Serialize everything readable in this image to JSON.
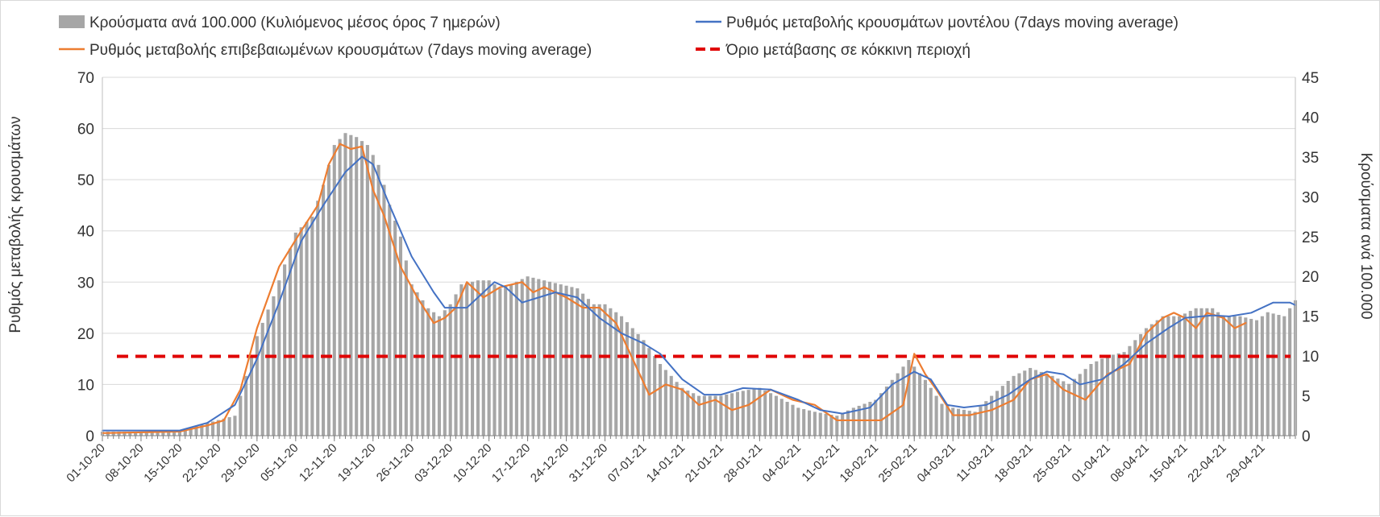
{
  "chart_data": {
    "type": "bar+line",
    "legend": [
      {
        "key": "bars",
        "label": "Κρούσματα ανά 100.000 (Κυλιόμενος μέσος όρος 7 ημερών)",
        "color": "#a6a6a6"
      },
      {
        "key": "model",
        "label": "Ρυθμός μεταβολής κρουσμάτων μοντέλου (7days moving average)",
        "color": "#4472c4"
      },
      {
        "key": "confirmed",
        "label": "Ρυθμός μεταβολής επιβεβαιωμένων κρουσμάτων (7days moving average)",
        "color": "#ed7d31"
      },
      {
        "key": "threshold",
        "label": "Όριο μετάβασης σε κόκκινη περιοχή",
        "color": "#e00000"
      }
    ],
    "legend_placement": "top",
    "ylabel_left": "Ρυθμός μεταβολής κρουσμάτων",
    "ylabel_right": "Κρούσματα ανά 100.000",
    "ylim_left": [
      0,
      70
    ],
    "yticks_left": [
      0,
      10,
      20,
      30,
      40,
      50,
      60,
      70
    ],
    "ylim_right": [
      0,
      45
    ],
    "yticks_right": [
      0,
      5,
      10,
      15,
      20,
      25,
      30,
      35,
      40,
      45
    ],
    "grid": true,
    "x_start": "01-10-20",
    "x_end": "05-05-21",
    "x_ticks": [
      "01-10-20",
      "08-10-20",
      "15-10-20",
      "22-10-20",
      "29-10-20",
      "05-11-20",
      "12-11-20",
      "19-11-20",
      "26-11-20",
      "03-12-20",
      "10-12-20",
      "17-12-20",
      "24-12-20",
      "31-12-20",
      "07-01-21",
      "14-01-21",
      "21-01-21",
      "28-01-21",
      "04-02-21",
      "11-02-21",
      "18-02-21",
      "25-02-21",
      "04-03-21",
      "11-03-21",
      "18-03-21",
      "25-03-21",
      "01-04-21",
      "08-04-21",
      "15-04-21",
      "22-04-21",
      "29-04-21"
    ],
    "threshold_left_value": 15.5,
    "bars_cases_per_100k": {
      "x": [
        "01-10-20",
        "08-10-20",
        "15-10-20",
        "20-10-20",
        "25-10-20",
        "29-10-20",
        "01-11-20",
        "03-11-20",
        "05-11-20",
        "08-11-20",
        "10-11-20",
        "12-11-20",
        "14-11-20",
        "16-11-20",
        "18-11-20",
        "20-11-20",
        "22-11-20",
        "24-11-20",
        "26-11-20",
        "29-11-20",
        "01-12-20",
        "03-12-20",
        "05-12-20",
        "08-12-20",
        "10-12-20",
        "12-12-20",
        "14-12-20",
        "17-12-20",
        "20-12-20",
        "23-12-20",
        "26-12-20",
        "29-12-20",
        "31-12-20",
        "03-01-21",
        "07-01-21",
        "10-01-21",
        "14-01-21",
        "17-01-21",
        "21-01-21",
        "24-01-21",
        "28-01-21",
        "31-01-21",
        "04-02-21",
        "07-02-21",
        "11-02-21",
        "14-02-21",
        "18-02-21",
        "21-02-21",
        "24-02-21",
        "27-02-21",
        "02-03-21",
        "04-03-21",
        "08-03-21",
        "11-03-21",
        "15-03-21",
        "18-03-21",
        "22-03-21",
        "25-03-21",
        "29-03-21",
        "01-04-21",
        "04-04-21",
        "06-04-21",
        "08-04-21",
        "11-04-21",
        "14-04-21",
        "17-04-21",
        "20-04-21",
        "22-04-21",
        "25-04-21",
        "28-04-21",
        "30-04-21",
        "03-05-21",
        "05-05-21"
      ],
      "values": [
        0.5,
        0.5,
        0.6,
        1.6,
        2.5,
        12.5,
        17.5,
        21.5,
        25.5,
        27.5,
        31.5,
        36.5,
        38,
        37.5,
        36.5,
        34,
        29,
        25,
        19,
        16,
        15,
        16.5,
        19,
        19.5,
        19.5,
        18.5,
        19,
        20,
        19.5,
        19,
        18.5,
        16.5,
        16.5,
        15,
        12,
        9,
        6,
        5,
        5,
        5.5,
        6,
        5,
        3.5,
        3,
        2.5,
        3.5,
        4.5,
        7,
        9.5,
        7,
        4,
        3.5,
        3,
        5,
        7.5,
        8.5,
        7.5,
        6.5,
        9,
        10,
        10.5,
        12,
        13.5,
        15,
        15,
        16,
        16,
        15,
        15,
        14.5,
        15.5,
        15,
        17
      ]
    },
    "series_model_rate": {
      "x": [
        "01-10-20",
        "15-10-20",
        "20-10-20",
        "25-10-20",
        "29-10-20",
        "02-11-20",
        "06-11-20",
        "10-11-20",
        "14-11-20",
        "17-11-20",
        "19-11-20",
        "22-11-20",
        "26-11-20",
        "30-11-20",
        "02-12-20",
        "06-12-20",
        "09-12-20",
        "11-12-20",
        "13-12-20",
        "16-12-20",
        "19-12-20",
        "22-12-20",
        "26-12-20",
        "30-12-20",
        "03-01-21",
        "07-01-21",
        "10-01-21",
        "14-01-21",
        "18-01-21",
        "21-01-21",
        "25-01-21",
        "30-01-21",
        "04-02-21",
        "08-02-21",
        "12-02-21",
        "17-02-21",
        "21-02-21",
        "25-02-21",
        "28-02-21",
        "03-03-21",
        "06-03-21",
        "10-03-21",
        "14-03-21",
        "18-03-21",
        "21-03-21",
        "24-03-21",
        "27-03-21",
        "31-03-21",
        "04-04-21",
        "08-04-21",
        "12-04-21",
        "15-04-21",
        "20-04-21",
        "23-04-21",
        "27-04-21",
        "01-05-21",
        "04-05-21",
        "05-05-21"
      ],
      "values": [
        1,
        1,
        2.5,
        6,
        15,
        26,
        38,
        45,
        51.5,
        54.5,
        53,
        45,
        35,
        28,
        25,
        25,
        28,
        30,
        29,
        26,
        27,
        28,
        27,
        23,
        20,
        18,
        16,
        11,
        8,
        8,
        9.3,
        9,
        7,
        5,
        4.3,
        5.5,
        10,
        12.5,
        11,
        6,
        5.5,
        6,
        8,
        11,
        12.5,
        12,
        10,
        11,
        14,
        18,
        21,
        23,
        23.5,
        23.3,
        24,
        26,
        26,
        25.5
      ]
    },
    "series_confirmed_rate": {
      "x": [
        "01-10-20",
        "15-10-20",
        "20-10-20",
        "23-10-20",
        "26-10-20",
        "29-10-20",
        "02-11-20",
        "06-11-20",
        "09-11-20",
        "11-11-20",
        "13-11-20",
        "15-11-20",
        "17-11-20",
        "19-11-20",
        "21-11-20",
        "24-11-20",
        "27-11-20",
        "30-11-20",
        "02-12-20",
        "04-12-20",
        "06-12-20",
        "09-12-20",
        "12-12-20",
        "14-12-20",
        "16-12-20",
        "18-12-20",
        "20-12-20",
        "22-12-20",
        "24-12-20",
        "27-12-20",
        "30-12-20",
        "02-01-21",
        "05-01-21",
        "08-01-21",
        "11-01-21",
        "14-01-21",
        "17-01-21",
        "20-01-21",
        "23-01-21",
        "26-01-21",
        "30-01-21",
        "03-02-21",
        "07-02-21",
        "11-02-21",
        "15-02-21",
        "19-02-21",
        "23-02-21",
        "25-02-21",
        "27-02-21",
        "01-03-21",
        "04-03-21",
        "07-03-21",
        "11-03-21",
        "15-03-21",
        "18-03-21",
        "21-03-21",
        "24-03-21",
        "28-03-21",
        "01-04-21",
        "05-04-21",
        "08-04-21",
        "11-04-21",
        "13-04-21",
        "15-04-21",
        "17-04-21",
        "19-04-21",
        "22-04-21",
        "24-04-21",
        "26-04-21"
      ],
      "values": [
        0.5,
        0.8,
        2,
        3,
        9,
        21,
        33,
        40,
        45,
        53,
        57,
        56,
        56.5,
        48,
        43,
        33,
        27,
        22,
        23,
        25,
        30,
        27,
        29,
        29.5,
        30,
        28,
        29,
        28,
        27,
        25,
        25,
        22,
        15,
        8,
        10,
        9,
        6,
        7,
        5,
        6,
        9,
        7,
        6,
        3,
        3,
        3,
        6,
        16,
        12,
        9,
        4,
        4,
        5,
        7,
        11,
        12,
        9,
        7,
        12,
        14,
        20,
        23,
        24,
        23,
        21,
        24,
        23,
        21,
        22
      ]
    }
  }
}
